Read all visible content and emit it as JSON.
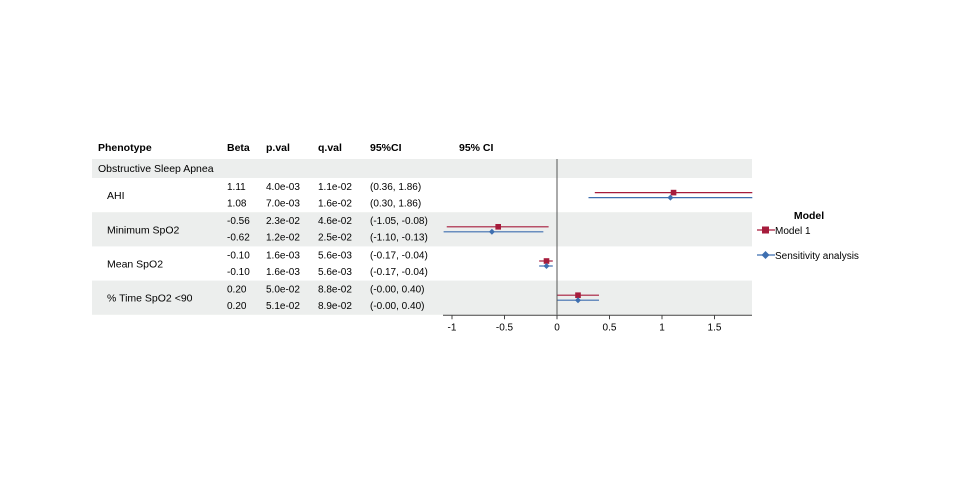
{
  "chart_data": {
    "type": "forest",
    "title": "",
    "xlabel": "",
    "ylabel": "",
    "table_headers": {
      "phenotype": "Phenotype",
      "beta": "Beta",
      "pval": "p.val",
      "qval": "q.val",
      "ci": "95%CI",
      "plot": "95% CI"
    },
    "group_label": "Obstructive Sleep Apnea",
    "x_ticks": [
      -1,
      -0.5,
      0,
      0.5,
      1,
      1.5
    ],
    "x_tick_labels": [
      "-1",
      "-0.5",
      "0",
      "0.5",
      "1",
      "1.5"
    ],
    "xlim": [
      -1.08,
      1.86
    ],
    "reference_line": 0,
    "legend": {
      "title": "Model",
      "position": "right",
      "entries": [
        "Model 1",
        "Sensitivity analysis"
      ]
    },
    "series_colors": [
      "#a61c3c",
      "#3e6fb0"
    ],
    "series_markers": [
      "square",
      "diamond"
    ],
    "rows": [
      {
        "phenotype": "AHI",
        "results": [
          {
            "model": "Model 1",
            "beta": 1.11,
            "beta_text": "1.11",
            "pval": "4.0e-03",
            "qval": "1.1e-02",
            "ci_text": "(0.36, 1.86)",
            "lo": 0.36,
            "hi": 1.86
          },
          {
            "model": "Sensitivity analysis",
            "beta": 1.08,
            "beta_text": "1.08",
            "pval": "7.0e-03",
            "qval": "1.6e-02",
            "ci_text": "(0.30, 1.86)",
            "lo": 0.3,
            "hi": 1.86
          }
        ]
      },
      {
        "phenotype": "Minimum SpO2",
        "results": [
          {
            "model": "Model 1",
            "beta": -0.56,
            "beta_text": "-0.56",
            "pval": "2.3e-02",
            "qval": "4.6e-02",
            "ci_text": "(-1.05, -0.08)",
            "lo": -1.05,
            "hi": -0.08
          },
          {
            "model": "Sensitivity analysis",
            "beta": -0.62,
            "beta_text": "-0.62",
            "pval": "1.2e-02",
            "qval": "2.5e-02",
            "ci_text": "(-1.10, -0.13)",
            "lo": -1.1,
            "hi": -0.13
          }
        ]
      },
      {
        "phenotype": "Mean SpO2",
        "results": [
          {
            "model": "Model 1",
            "beta": -0.1,
            "beta_text": "-0.10",
            "pval": "1.6e-03",
            "qval": "5.6e-03",
            "ci_text": "(-0.17, -0.04)",
            "lo": -0.17,
            "hi": -0.04
          },
          {
            "model": "Sensitivity analysis",
            "beta": -0.1,
            "beta_text": "-0.10",
            "pval": "1.6e-03",
            "qval": "5.6e-03",
            "ci_text": "(-0.17, -0.04)",
            "lo": -0.17,
            "hi": -0.04
          }
        ]
      },
      {
        "phenotype": "% Time SpO2 <90",
        "results": [
          {
            "model": "Model 1",
            "beta": 0.2,
            "beta_text": "0.20",
            "pval": "5.0e-02",
            "qval": "8.8e-02",
            "ci_text": "(-0.00, 0.40)",
            "lo": 0.0,
            "hi": 0.4
          },
          {
            "model": "Sensitivity analysis",
            "beta": 0.2,
            "beta_text": "0.20",
            "pval": "5.1e-02",
            "qval": "8.9e-02",
            "ci_text": "(-0.00, 0.40)",
            "lo": 0.0,
            "hi": 0.4
          }
        ]
      }
    ]
  }
}
